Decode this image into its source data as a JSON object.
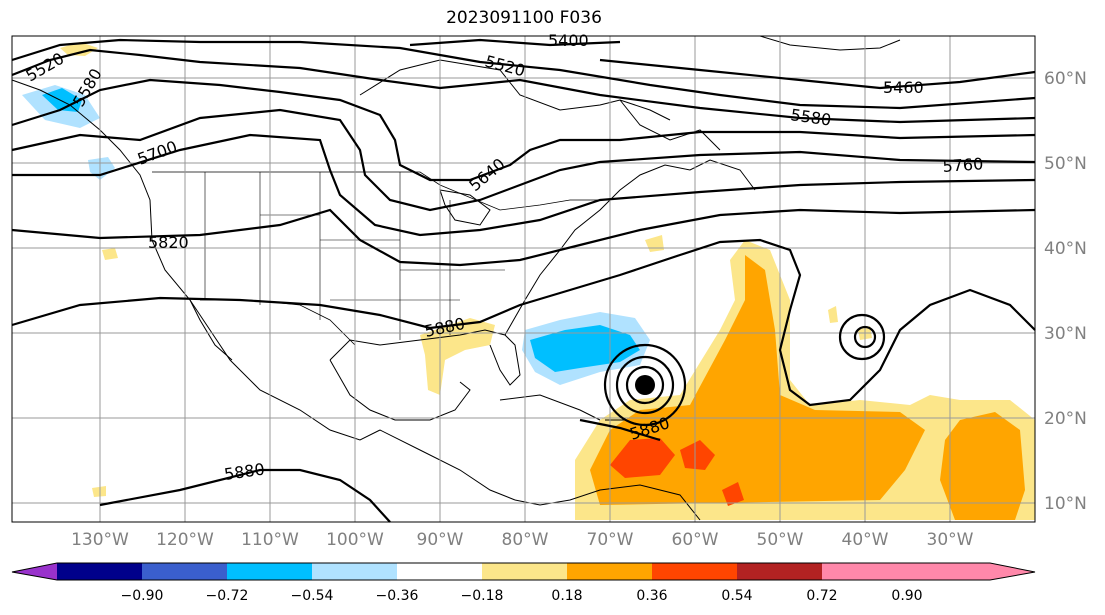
{
  "title": "2023091100 F036",
  "map": {
    "lon_labels": [
      "130°W",
      "120°W",
      "110°W",
      "100°W",
      "90°W",
      "80°W",
      "70°W",
      "60°W",
      "50°W",
      "40°W",
      "30°W"
    ],
    "lat_labels": [
      "60°N",
      "50°N",
      "40°N",
      "30°N",
      "20°N",
      "10°N"
    ],
    "contour_labels": [
      "5400",
      "5460",
      "5520",
      "5520",
      "5580",
      "5580",
      "5640",
      "5700",
      "5760",
      "5820",
      "5880",
      "5880",
      "5880"
    ]
  },
  "colorbar": {
    "colors": [
      "#9932cc",
      "#00008b",
      "#3a5fcd",
      "#00bfff",
      "#b0e2ff",
      "#ffffff",
      "#fce68a",
      "#ffa500",
      "#ff4500",
      "#b22222",
      "#ff88aa"
    ],
    "ticks": [
      "−0.90",
      "−0.72",
      "−0.54",
      "−0.36",
      "−0.18",
      "0.18",
      "0.36",
      "0.54",
      "0.72",
      "0.90"
    ]
  }
}
